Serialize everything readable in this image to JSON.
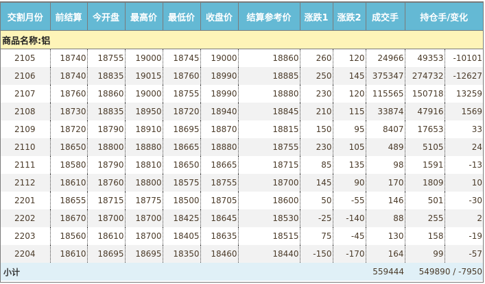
{
  "headers": [
    "交割月份",
    "前结算",
    "今开盘",
    "最高价",
    "最低价",
    "收盘价",
    "结算参考价",
    "涨跌1",
    "涨跌2",
    "成交手",
    "持仓手/变化"
  ],
  "commodity": "商品名称:铝",
  "rows": [
    [
      "2105",
      "18740",
      "18755",
      "19000",
      "18745",
      "19000",
      "18860",
      "260",
      "120",
      "24966",
      "49353",
      "-10101"
    ],
    [
      "2106",
      "18740",
      "18835",
      "19015",
      "18760",
      "18990",
      "18885",
      "250",
      "145",
      "375347",
      "274732",
      "-12627"
    ],
    [
      "2107",
      "18760",
      "18860",
      "19000",
      "18755",
      "18990",
      "18880",
      "230",
      "120",
      "115565",
      "150718",
      "13259"
    ],
    [
      "2108",
      "18730",
      "18835",
      "18950",
      "18720",
      "18940",
      "18845",
      "210",
      "115",
      "33874",
      "47916",
      "1569"
    ],
    [
      "2109",
      "18720",
      "18790",
      "18910",
      "18695",
      "18870",
      "18815",
      "150",
      "95",
      "8407",
      "17653",
      "33"
    ],
    [
      "2110",
      "18650",
      "18800",
      "18880",
      "18665",
      "18880",
      "18755",
      "230",
      "105",
      "489",
      "5105",
      "24"
    ],
    [
      "2111",
      "18580",
      "18790",
      "18810",
      "18650",
      "18665",
      "18715",
      "85",
      "135",
      "98",
      "1591",
      "-13"
    ],
    [
      "2112",
      "18610",
      "18760",
      "18800",
      "18575",
      "18755",
      "18700",
      "145",
      "90",
      "170",
      "1809",
      "10"
    ],
    [
      "2201",
      "18655",
      "18715",
      "18775",
      "18500",
      "18705",
      "18600",
      "50",
      "-55",
      "146",
      "501",
      "-30"
    ],
    [
      "2202",
      "18670",
      "18700",
      "18700",
      "18425",
      "18645",
      "18530",
      "-25",
      "-140",
      "88",
      "255",
      "2"
    ],
    [
      "2203",
      "18560",
      "18610",
      "18700",
      "18405",
      "18635",
      "18515",
      "75",
      "-45",
      "130",
      "158",
      "-19"
    ],
    [
      "2204",
      "18610",
      "18695",
      "18695",
      "18350",
      "18460",
      "18440",
      "-150",
      "-170",
      "164",
      "99",
      "-57"
    ]
  ],
  "subtotal": {
    "label": "小计",
    "volume": "559444",
    "open_interest": "549890 / -7950"
  }
}
